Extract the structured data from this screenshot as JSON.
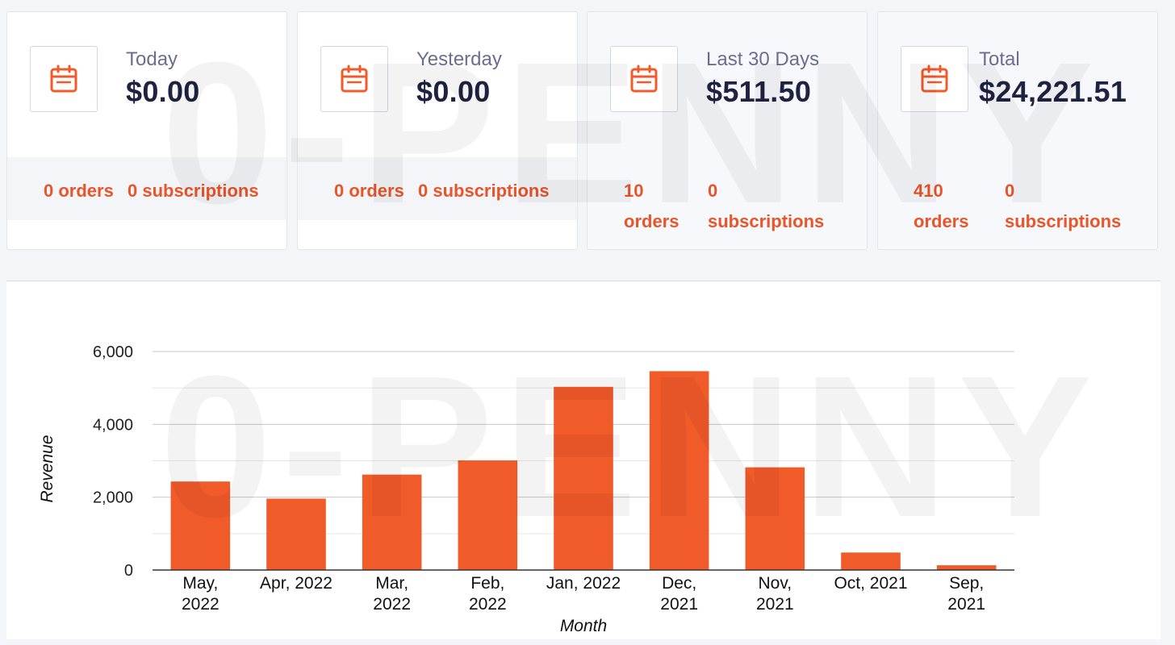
{
  "watermark": "0-PENNY",
  "colors": {
    "accent": "#f15a29",
    "text_dark": "#1f2240",
    "text_muted": "#6b6f8e"
  },
  "cards": [
    {
      "icon": "calendar-icon",
      "period": "Today",
      "amount": "$0.00",
      "orders": "0 orders",
      "subscriptions": "0 subscriptions"
    },
    {
      "icon": "calendar-icon",
      "period": "Yesterday",
      "amount": "$0.00",
      "orders": "0 orders",
      "subscriptions": "0 subscriptions"
    },
    {
      "icon": "calendar-icon",
      "period": "Last 30 Days",
      "amount": "$511.50",
      "orders_count": "10",
      "orders_word": "orders",
      "subs_count": "0",
      "subs_word": "subscriptions"
    },
    {
      "icon": "calendar-icon",
      "period": "Total",
      "amount": "$24,221.51",
      "orders_count": "410",
      "orders_word": "orders",
      "subs_count": "0",
      "subs_word": "subscriptions"
    }
  ],
  "chart_data": {
    "type": "bar",
    "categories": [
      [
        "May,",
        "2022"
      ],
      [
        "Apr, 2022"
      ],
      [
        "Mar,",
        "2022"
      ],
      [
        "Feb,",
        "2022"
      ],
      [
        "Jan, 2022"
      ],
      [
        "Dec,",
        "2021"
      ],
      [
        "Nov,",
        "2021"
      ],
      [
        "Oct, 2021"
      ],
      [
        "Sep,",
        "2021"
      ]
    ],
    "values": [
      2430,
      1960,
      2620,
      3010,
      5030,
      5460,
      2820,
      480,
      130
    ],
    "xlabel": "Month",
    "ylabel": "Revenue",
    "ylim": [
      0,
      6000
    ],
    "yticks": [
      0,
      2000,
      4000,
      6000
    ],
    "ytick_labels": [
      "0",
      "2,000",
      "4,000",
      "6,000"
    ],
    "grid": true,
    "bar_color": "#f15a29"
  }
}
